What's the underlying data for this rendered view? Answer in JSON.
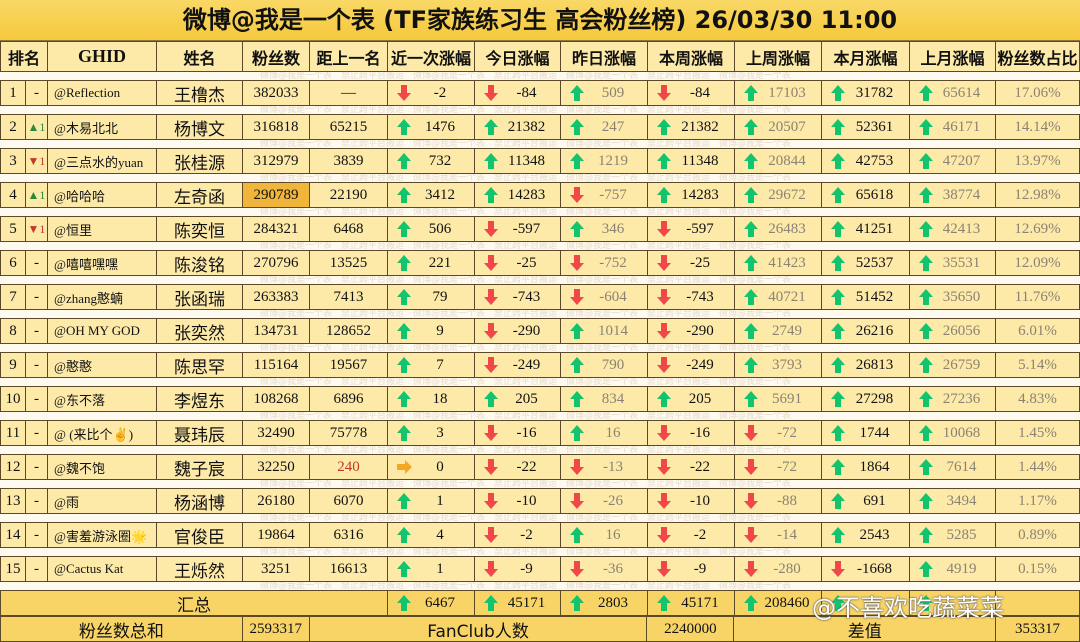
{
  "title": "微博@我是一个表 (TF家族练习生 高会粉丝榜)  26/03/30 11:00",
  "headers": [
    "排名",
    "GHID",
    "姓名",
    "粉丝数",
    "距上一名",
    "近一次涨幅",
    "今日涨幅",
    "昨日涨幅",
    "本周涨幅",
    "上周涨幅",
    "本月涨幅",
    "上月涨幅",
    "粉丝数占比"
  ],
  "band_watermark": "微博@我是一个表　禁止跨平台搬运　微博@我是一个表　禁止跨平台搬运　微博@我是一个表　禁止跨平台搬运　微博@我是一个表",
  "colors": {
    "up": "#12c46e",
    "down": "#f04848",
    "flat": "#f5a623",
    "highlight": "#f0b53a"
  },
  "rows": [
    {
      "rank": "1",
      "move": "-",
      "ghid": "@Reflection",
      "name": "王橹杰",
      "fans": "382033",
      "gap": "—",
      "recent": "-2",
      "today": "-84",
      "yesterday": "509",
      "this_week": "-84",
      "last_week": "17103",
      "this_month": "31782",
      "last_month": "65614",
      "share": "17.06%"
    },
    {
      "rank": "2",
      "move": "▲1",
      "ghid": "@木易北北",
      "name": "杨博文",
      "fans": "316818",
      "gap": "65215",
      "recent": "1476",
      "today": "21382",
      "yesterday": "247",
      "this_week": "21382",
      "last_week": "20507",
      "this_month": "52361",
      "last_month": "46171",
      "share": "14.14%"
    },
    {
      "rank": "3",
      "move": "▼1",
      "ghid": "@三点水的yuan",
      "name": "张桂源",
      "fans": "312979",
      "gap": "3839",
      "recent": "732",
      "today": "11348",
      "yesterday": "1219",
      "this_week": "11348",
      "last_week": "20844",
      "this_month": "42753",
      "last_month": "47207",
      "share": "13.97%"
    },
    {
      "rank": "4",
      "move": "▲1",
      "ghid": "@哈哈哈",
      "name": "左奇函",
      "fans": "290789",
      "fans_highlight": true,
      "gap": "22190",
      "recent": "3412",
      "today": "14283",
      "yesterday": "-757",
      "this_week": "14283",
      "last_week": "29672",
      "this_month": "65618",
      "last_month": "38774",
      "share": "12.98%"
    },
    {
      "rank": "5",
      "move": "▼1",
      "ghid": "@恒里",
      "name": "陈奕恒",
      "fans": "284321",
      "gap": "6468",
      "recent": "506",
      "today": "-597",
      "yesterday": "346",
      "this_week": "-597",
      "last_week": "26483",
      "this_month": "41251",
      "last_month": "42413",
      "share": "12.69%"
    },
    {
      "rank": "6",
      "move": "-",
      "ghid": "@嘻嘻嘿嘿",
      "name": "陈浚铭",
      "fans": "270796",
      "gap": "13525",
      "recent": "221",
      "today": "-25",
      "yesterday": "-752",
      "this_week": "-25",
      "last_week": "41423",
      "this_month": "52537",
      "last_month": "35531",
      "share": "12.09%"
    },
    {
      "rank": "7",
      "move": "-",
      "ghid": "@zhang憨蝻",
      "name": "张函瑞",
      "fans": "263383",
      "gap": "7413",
      "recent": "79",
      "today": "-743",
      "yesterday": "-604",
      "this_week": "-743",
      "last_week": "40721",
      "this_month": "51452",
      "last_month": "35650",
      "share": "11.76%"
    },
    {
      "rank": "8",
      "move": "-",
      "ghid": "@OH MY GOD",
      "name": "张奕然",
      "fans": "134731",
      "gap": "128652",
      "recent": "9",
      "today": "-290",
      "yesterday": "1014",
      "this_week": "-290",
      "last_week": "2749",
      "this_month": "26216",
      "last_month": "26056",
      "share": "6.01%"
    },
    {
      "rank": "9",
      "move": "-",
      "ghid": "@憨憨",
      "name": "陈思罕",
      "fans": "115164",
      "gap": "19567",
      "recent": "7",
      "today": "-249",
      "yesterday": "790",
      "this_week": "-249",
      "last_week": "3793",
      "this_month": "26813",
      "last_month": "26759",
      "share": "5.14%"
    },
    {
      "rank": "10",
      "move": "-",
      "ghid": "@东不落",
      "name": "李煜东",
      "fans": "108268",
      "gap": "6896",
      "recent": "18",
      "today": "205",
      "yesterday": "834",
      "this_week": "205",
      "last_week": "5691",
      "this_month": "27298",
      "last_month": "27236",
      "share": "4.83%"
    },
    {
      "rank": "11",
      "move": "-",
      "ghid": "@ (来比个✌)",
      "name": "聂玮辰",
      "fans": "32490",
      "gap": "75778",
      "recent": "3",
      "today": "-16",
      "yesterday": "16",
      "this_week": "-16",
      "last_week": "-72",
      "this_month": "1744",
      "last_month": "10068",
      "share": "1.45%"
    },
    {
      "rank": "12",
      "move": "-",
      "ghid": "@魏不饱",
      "name": "魏子宸",
      "fans": "32250",
      "gap": "240",
      "gap_red": true,
      "recent": "0",
      "today": "-22",
      "yesterday": "-13",
      "this_week": "-22",
      "last_week": "-72",
      "this_month": "1864",
      "last_month": "7614",
      "share": "1.44%"
    },
    {
      "rank": "13",
      "move": "-",
      "ghid": "@雨",
      "name": "杨涵博",
      "fans": "26180",
      "gap": "6070",
      "recent": "1",
      "today": "-10",
      "yesterday": "-26",
      "this_week": "-10",
      "last_week": "-88",
      "this_month": "691",
      "last_month": "3494",
      "share": "1.17%"
    },
    {
      "rank": "14",
      "move": "-",
      "ghid": "@害羞游泳圈🌟",
      "name": "官俊臣",
      "fans": "19864",
      "gap": "6316",
      "recent": "4",
      "today": "-2",
      "yesterday": "16",
      "this_week": "-2",
      "last_week": "-14",
      "this_month": "2543",
      "last_month": "5285",
      "share": "0.89%"
    },
    {
      "rank": "15",
      "move": "-",
      "ghid": "@Cactus Kat",
      "name": "王烁然",
      "fans": "3251",
      "gap": "16613",
      "recent": "1",
      "today": "-9",
      "yesterday": "-36",
      "this_week": "-9",
      "last_week": "-280",
      "this_month": "-1668",
      "last_month": "4919",
      "share": "0.15%"
    }
  ],
  "summary": {
    "label": "汇总",
    "recent": "6467",
    "today": "45171",
    "yesterday": "2803",
    "this_week": "45171",
    "last_week": "208460"
  },
  "footer": {
    "total_label": "粉丝数总和",
    "total": "2593317",
    "fanclub_label": "FanClub人数",
    "fanclub": "2240000",
    "diff_label": "差值",
    "diff": "353317"
  },
  "watermark": "@不喜欢吃蔬菜菜"
}
